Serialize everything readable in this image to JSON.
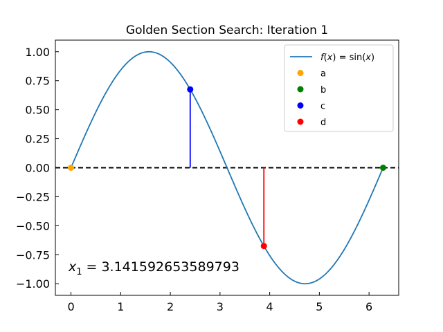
{
  "chart_data": {
    "type": "line",
    "title": "Golden Section Search: Iteration 1",
    "xlabel": "",
    "ylabel": "",
    "xlim": [
      -0.314,
      6.597
    ],
    "ylim": [
      -1.1,
      1.1
    ],
    "xticks": [
      0,
      1,
      2,
      3,
      4,
      5,
      6
    ],
    "yticks": [
      -1.0,
      -0.75,
      -0.5,
      -0.25,
      0.0,
      0.25,
      0.5,
      0.75,
      1.0
    ],
    "ytick_labels": [
      "−1.00",
      "−0.75",
      "−0.50",
      "−0.25",
      "0.00",
      "0.25",
      "0.50",
      "0.75",
      "1.00"
    ],
    "xtick_labels": [
      "0",
      "1",
      "2",
      "3",
      "4",
      "5",
      "6"
    ],
    "series": [
      {
        "name": "f(x) = sin(x)",
        "function": "sin",
        "x_range": [
          0,
          6.283185307179586
        ],
        "color": "#1f77b4"
      }
    ],
    "points": [
      {
        "name": "a",
        "x": 0.0,
        "y": 0.0,
        "color": "#ffa500"
      },
      {
        "name": "b",
        "x": 6.283185307179586,
        "y": 0.0,
        "color": "#008000"
      },
      {
        "name": "c",
        "x": 2.399963,
        "y": 0.675,
        "color": "#0000ff"
      },
      {
        "name": "d",
        "x": 3.883222,
        "y": -0.675,
        "color": "#ff0000"
      }
    ],
    "vlines": [
      {
        "point": "c",
        "x": 2.399963,
        "y0": 0.0,
        "y1": 0.675,
        "color": "#0000ff"
      },
      {
        "point": "d",
        "x": 3.883222,
        "y0": 0.0,
        "y1": -0.675,
        "color": "#ff0000"
      }
    ],
    "hline": {
      "y": 0.0,
      "style": "dashed",
      "color": "#000000"
    },
    "annotation": {
      "text_var": "x",
      "text_sub": "1",
      "text_eq": " = 3.141592653589793",
      "x": -0.05,
      "y": -0.85
    },
    "legend": {
      "placement": "top-right",
      "entries": [
        {
          "label_pre": "f",
          "label_mid": "(",
          "label_var": "x",
          "label_post": ") = sin(",
          "label_var2": "x",
          "label_end": ")",
          "kind": "line",
          "color": "#1f77b4"
        },
        {
          "label": "a",
          "kind": "marker",
          "color": "#ffa500"
        },
        {
          "label": "b",
          "kind": "marker",
          "color": "#008000"
        },
        {
          "label": "c",
          "kind": "marker",
          "color": "#0000ff"
        },
        {
          "label": "d",
          "kind": "marker",
          "color": "#ff0000"
        }
      ]
    },
    "grid": false
  }
}
